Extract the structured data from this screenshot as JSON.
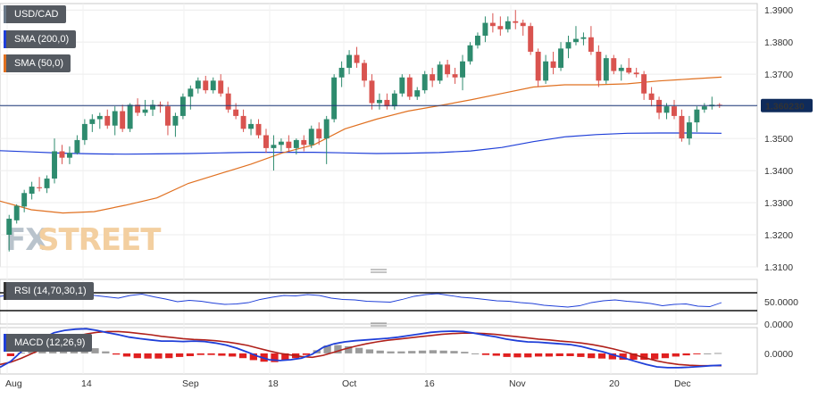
{
  "chart_data": {
    "type": "candlestick",
    "symbol": "USD/CAD",
    "current_price": "1.360230",
    "watermark": {
      "prefix": "FX",
      "suffix": "STREET"
    },
    "x_labels": [
      "Aug",
      "14",
      "Sep",
      "18",
      "Oct",
      "16",
      "Nov",
      "20",
      "Dec"
    ],
    "main": {
      "y_ticks": [
        "1.3900",
        "1.3800",
        "1.3700",
        "1.3600",
        "1.3500",
        "1.3400",
        "1.3300",
        "1.3200",
        "1.3100"
      ],
      "ylim": [
        1.31,
        1.392
      ],
      "indicators": [
        {
          "name": "SMA (200,0)",
          "color": "#1f3fd8"
        },
        {
          "name": "SMA (50,0)",
          "color": "#e07020"
        }
      ],
      "sma200": [
        1.3462,
        1.3458,
        1.3454,
        1.3452,
        1.3451,
        1.3452,
        1.3453,
        1.3455,
        1.3457,
        1.3457,
        1.3457,
        1.3455,
        1.3453,
        1.3454,
        1.3456,
        1.3461,
        1.3472,
        1.349,
        1.3505,
        1.3512,
        1.3516,
        1.3517,
        1.3517,
        1.3516
      ],
      "sma50": [
        1.3305,
        1.3278,
        1.3268,
        1.3272,
        1.3292,
        1.3315,
        1.336,
        1.339,
        1.342,
        1.3455,
        1.348,
        1.353,
        1.356,
        1.3585,
        1.3602,
        1.362,
        1.364,
        1.366,
        1.3667,
        1.3667,
        1.367,
        1.3679,
        1.3685,
        1.3691
      ],
      "candles_ohlc": [
        [
          1.32,
          1.3262,
          1.3148,
          1.325
        ],
        [
          1.3245,
          1.3295,
          1.3235,
          1.329
        ],
        [
          1.3288,
          1.334,
          1.327,
          1.333
        ],
        [
          1.3328,
          1.3365,
          1.331,
          1.335
        ],
        [
          1.3348,
          1.338,
          1.3335,
          1.3345
        ],
        [
          1.3345,
          1.3385,
          1.333,
          1.3375
        ],
        [
          1.3375,
          1.35,
          1.336,
          1.346
        ],
        [
          1.346,
          1.348,
          1.342,
          1.344
        ],
        [
          1.344,
          1.3475,
          1.342,
          1.3455
        ],
        [
          1.3455,
          1.351,
          1.345,
          1.3495
        ],
        [
          1.3495,
          1.356,
          1.348,
          1.3545
        ],
        [
          1.3545,
          1.3575,
          1.352,
          1.356
        ],
        [
          1.356,
          1.358,
          1.353,
          1.357
        ],
        [
          1.357,
          1.359,
          1.353,
          1.354
        ],
        [
          1.354,
          1.36,
          1.351,
          1.3585
        ],
        [
          1.3585,
          1.3605,
          1.352,
          1.353
        ],
        [
          1.353,
          1.361,
          1.352,
          1.3605
        ],
        [
          1.3605,
          1.3625,
          1.357,
          1.358
        ],
        [
          1.358,
          1.362,
          1.357,
          1.359
        ],
        [
          1.359,
          1.362,
          1.357,
          1.3605
        ],
        [
          1.3605,
          1.3615,
          1.358,
          1.36
        ],
        [
          1.36,
          1.3615,
          1.351,
          1.354
        ],
        [
          1.354,
          1.358,
          1.3505,
          1.357
        ],
        [
          1.357,
          1.364,
          1.356,
          1.363
        ],
        [
          1.363,
          1.3665,
          1.359,
          1.3655
        ],
        [
          1.3655,
          1.369,
          1.364,
          1.368
        ],
        [
          1.368,
          1.3695,
          1.364,
          1.365
        ],
        [
          1.365,
          1.369,
          1.364,
          1.368
        ],
        [
          1.368,
          1.37,
          1.363,
          1.364
        ],
        [
          1.364,
          1.366,
          1.358,
          1.359
        ],
        [
          1.359,
          1.361,
          1.356,
          1.357
        ],
        [
          1.357,
          1.359,
          1.352,
          1.353
        ],
        [
          1.353,
          1.356,
          1.351,
          1.3545
        ],
        [
          1.3545,
          1.356,
          1.35,
          1.351
        ],
        [
          1.351,
          1.353,
          1.3455,
          1.347
        ],
        [
          1.347,
          1.351,
          1.34,
          1.348
        ],
        [
          1.348,
          1.35,
          1.346,
          1.349
        ],
        [
          1.349,
          1.351,
          1.346,
          1.347
        ],
        [
          1.347,
          1.35,
          1.345,
          1.3495
        ],
        [
          1.3495,
          1.351,
          1.346,
          1.348
        ],
        [
          1.348,
          1.354,
          1.347,
          1.353
        ],
        [
          1.353,
          1.355,
          1.348,
          1.35
        ],
        [
          1.35,
          1.357,
          1.342,
          1.356
        ],
        [
          1.356,
          1.37,
          1.355,
          1.369
        ],
        [
          1.369,
          1.374,
          1.366,
          1.372
        ],
        [
          1.372,
          1.3775,
          1.37,
          1.376
        ],
        [
          1.376,
          1.3785,
          1.372,
          1.3735
        ],
        [
          1.3735,
          1.3745,
          1.366,
          1.368
        ],
        [
          1.368,
          1.37,
          1.359,
          1.361
        ],
        [
          1.361,
          1.364,
          1.359,
          1.362
        ],
        [
          1.362,
          1.364,
          1.359,
          1.36
        ],
        [
          1.36,
          1.365,
          1.359,
          1.364
        ],
        [
          1.364,
          1.37,
          1.363,
          1.369
        ],
        [
          1.369,
          1.37,
          1.362,
          1.363
        ],
        [
          1.363,
          1.366,
          1.362,
          1.365
        ],
        [
          1.365,
          1.371,
          1.364,
          1.37
        ],
        [
          1.37,
          1.372,
          1.366,
          1.368
        ],
        [
          1.368,
          1.374,
          1.367,
          1.373
        ],
        [
          1.373,
          1.3745,
          1.369,
          1.37
        ],
        [
          1.37,
          1.372,
          1.367,
          1.369
        ],
        [
          1.369,
          1.376,
          1.365,
          1.374
        ],
        [
          1.374,
          1.38,
          1.373,
          1.379
        ],
        [
          1.379,
          1.383,
          1.378,
          1.382
        ],
        [
          1.382,
          1.388,
          1.38,
          1.386
        ],
        [
          1.386,
          1.389,
          1.383,
          1.385
        ],
        [
          1.385,
          1.388,
          1.382,
          1.384
        ],
        [
          1.384,
          1.388,
          1.383,
          1.3865
        ],
        [
          1.3865,
          1.39,
          1.384,
          1.386
        ],
        [
          1.386,
          1.387,
          1.382,
          1.385
        ],
        [
          1.385,
          1.386,
          1.376,
          1.377
        ],
        [
          1.377,
          1.378,
          1.366,
          1.368
        ],
        [
          1.368,
          1.376,
          1.367,
          1.374
        ],
        [
          1.374,
          1.377,
          1.37,
          1.372
        ],
        [
          1.372,
          1.38,
          1.371,
          1.378
        ],
        [
          1.378,
          1.382,
          1.375,
          1.38
        ],
        [
          1.38,
          1.385,
          1.379,
          1.381
        ],
        [
          1.381,
          1.383,
          1.379,
          1.3815
        ],
        [
          1.3815,
          1.385,
          1.376,
          1.377
        ],
        [
          1.377,
          1.379,
          1.366,
          1.368
        ],
        [
          1.368,
          1.376,
          1.367,
          1.375
        ],
        [
          1.375,
          1.376,
          1.37,
          1.371
        ],
        [
          1.371,
          1.373,
          1.368,
          1.372
        ],
        [
          1.372,
          1.375,
          1.37,
          1.3705
        ],
        [
          1.3705,
          1.372,
          1.369,
          1.37
        ],
        [
          1.37,
          1.371,
          1.362,
          1.364
        ],
        [
          1.364,
          1.366,
          1.36,
          1.362
        ],
        [
          1.362,
          1.363,
          1.356,
          1.358
        ],
        [
          1.358,
          1.361,
          1.356,
          1.36
        ],
        [
          1.36,
          1.362,
          1.356,
          1.357
        ],
        [
          1.357,
          1.359,
          1.349,
          1.35
        ],
        [
          1.35,
          1.357,
          1.348,
          1.355
        ],
        [
          1.355,
          1.36,
          1.352,
          1.359
        ],
        [
          1.359,
          1.361,
          1.358,
          1.36
        ],
        [
          1.36,
          1.363,
          1.359,
          1.3605
        ],
        [
          1.3605,
          1.361,
          1.3595,
          1.3602
        ]
      ]
    },
    "rsi": {
      "label": "RSI (14,70,30,1)",
      "y_ticks": [
        "50.0000",
        "0.0000"
      ],
      "ylim": [
        0,
        100
      ],
      "upper": 70,
      "lower": 30,
      "values": [
        62,
        66,
        70,
        64,
        58,
        57,
        62,
        66,
        64,
        61,
        58,
        64,
        67,
        61,
        56,
        50,
        53,
        51,
        47,
        44,
        45,
        48,
        55,
        60,
        64,
        63,
        66,
        64,
        58,
        55,
        54,
        51,
        50,
        49,
        55,
        62,
        66,
        68,
        64,
        60,
        58,
        55,
        52,
        51,
        48,
        46,
        42,
        40,
        38,
        41,
        48,
        52,
        54,
        51,
        49,
        46,
        41,
        44,
        45,
        40,
        39,
        48
      ]
    },
    "macd": {
      "label": "MACD (12,26,9)",
      "y_ticks": [
        "0.0000"
      ],
      "ylim": [
        -0.0052,
        0.0065
      ],
      "macd": [
        -0.0035,
        -0.002,
        0.0005,
        0.002,
        0.0038,
        0.0052,
        0.0058,
        0.0061,
        0.0062,
        0.0058,
        0.0052,
        0.0047,
        0.0041,
        0.0037,
        0.0034,
        0.0031,
        0.0031,
        0.003,
        0.0031,
        0.003,
        0.0026,
        0.0021,
        0.0013,
        0.0003,
        -0.0008,
        -0.0016,
        -0.0018,
        -0.0016,
        -0.0012,
        -0.0002,
        0.0015,
        0.0024,
        0.0029,
        0.0032,
        0.0034,
        0.0036,
        0.0038,
        0.0041,
        0.0045,
        0.0049,
        0.0053,
        0.0055,
        0.0056,
        0.0055,
        0.0051,
        0.0046,
        0.0042,
        0.0036,
        0.0032,
        0.0029,
        0.0028,
        0.0026,
        0.0024,
        0.0022,
        0.0017,
        0.001,
        0.0004,
        -0.0004,
        -0.0012,
        -0.002,
        -0.0028,
        -0.0034,
        -0.0036,
        -0.0036,
        -0.0035,
        -0.0033,
        -0.0031,
        -0.003
      ],
      "signal": [
        -0.0028,
        -0.0022,
        -0.0012,
        0.0,
        0.0012,
        0.0024,
        0.0034,
        0.0043,
        0.0049,
        0.0053,
        0.0055,
        0.0055,
        0.0053,
        0.005,
        0.0047,
        0.0043,
        0.004,
        0.0037,
        0.0035,
        0.0034,
        0.0032,
        0.0029,
        0.0025,
        0.002,
        0.0013,
        0.0006,
        0.0,
        -0.0004,
        -0.0008,
        -0.001,
        -0.0005,
        0.0003,
        0.0011,
        0.0018,
        0.0024,
        0.0029,
        0.0033,
        0.0036,
        0.0039,
        0.0042,
        0.0045,
        0.0048,
        0.005,
        0.0051,
        0.0051,
        0.005,
        0.0048,
        0.0045,
        0.0042,
        0.0039,
        0.0036,
        0.0034,
        0.0031,
        0.0029,
        0.0026,
        0.0022,
        0.0017,
        0.0011,
        0.0004,
        -0.0004,
        -0.0012,
        -0.0019,
        -0.0024,
        -0.0028,
        -0.003,
        -0.0031,
        -0.0031,
        -0.0031
      ]
    }
  }
}
